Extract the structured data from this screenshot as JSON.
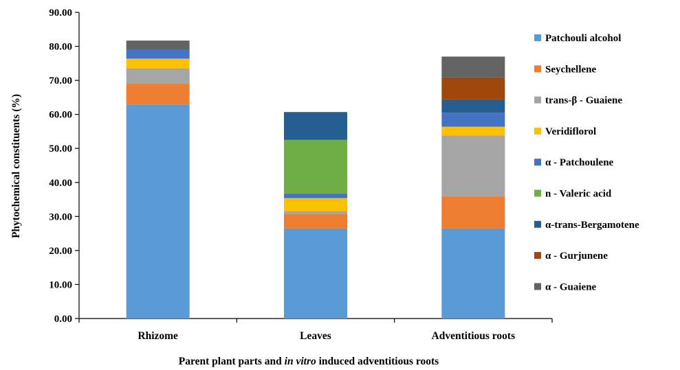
{
  "chart_data": {
    "type": "bar",
    "stacked": true,
    "categories": [
      "Rhizome",
      "Leaves",
      "Adventitious roots"
    ],
    "series": [
      {
        "name": "Patchouli alcohol",
        "color": "#5b9bd5",
        "values": [
          62.9,
          26.5,
          26.5
        ]
      },
      {
        "name": "Seychellene",
        "color": "#ed7d31",
        "values": [
          6.1,
          4.3,
          9.4
        ]
      },
      {
        "name": "trans-β - Guaiene",
        "color": "#a5a5a5",
        "values": [
          4.6,
          0.8,
          17.9
        ]
      },
      {
        "name": "Veridiflorol",
        "color": "#ffc000",
        "values": [
          2.8,
          3.8,
          2.6
        ]
      },
      {
        "name": "α - Patchoulene",
        "color": "#4472c4",
        "values": [
          2.7,
          1.3,
          4.1
        ]
      },
      {
        "name": "n - Valeric acid",
        "color": "#70ad47",
        "values": [
          0.0,
          15.8,
          0.0
        ]
      },
      {
        "name": "α-trans-Bergamotene",
        "color": "#255e91",
        "values": [
          0.0,
          8.2,
          3.9
        ]
      },
      {
        "name": "α - Gurjunene",
        "color": "#9e480e",
        "values": [
          0.0,
          0.0,
          6.5
        ]
      },
      {
        "name": "α - Guaiene",
        "color": "#636363",
        "values": [
          2.6,
          0.0,
          6.1
        ]
      }
    ],
    "ylim": [
      0,
      90
    ],
    "yticks": [
      "0.00",
      "10.00",
      "20.00",
      "30.00",
      "40.00",
      "50.00",
      "60.00",
      "70.00",
      "80.00",
      "90.00"
    ],
    "ylabel": "Phytochemical constituents (%)",
    "xlabel_parts": [
      "Parent plant parts and ",
      "in vitro",
      " induced adventitious roots"
    ],
    "legend_position": "right",
    "grid": false
  }
}
